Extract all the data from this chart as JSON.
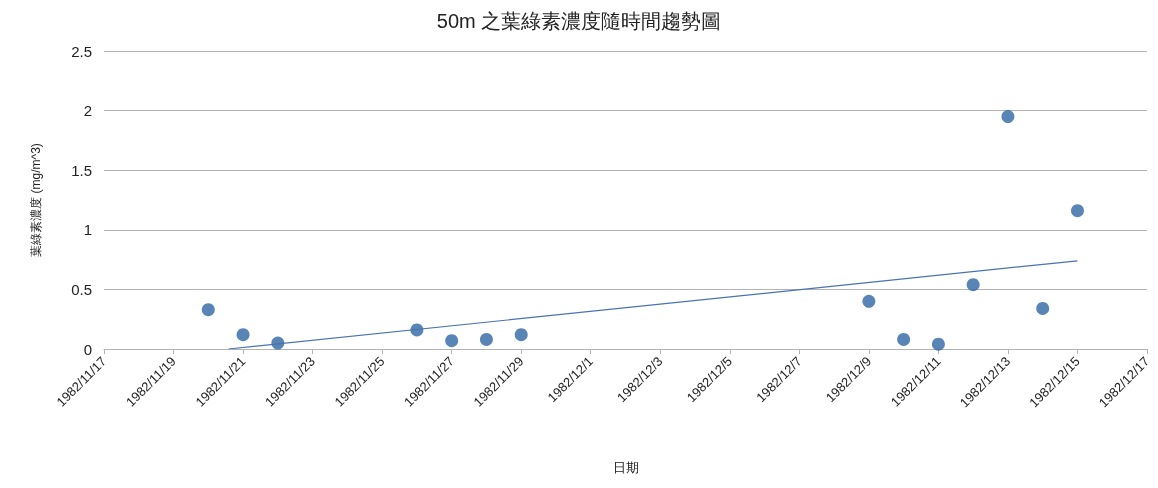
{
  "chart_data": {
    "type": "scatter",
    "title": "50m 之葉綠素濃度隨時間趨勢圖",
    "xlabel": "日期",
    "ylabel": "葉綠素濃度 (mg/m^3)",
    "xlim": [
      "1982-11-17",
      "1982-12-17"
    ],
    "xticks": [
      {
        "value": "1982-11-17",
        "label": "1982/11/17"
      },
      {
        "value": "1982-11-19",
        "label": "1982/11/19"
      },
      {
        "value": "1982-11-21",
        "label": "1982/11/21"
      },
      {
        "value": "1982-11-23",
        "label": "1982/11/23"
      },
      {
        "value": "1982-11-25",
        "label": "1982/11/25"
      },
      {
        "value": "1982-11-27",
        "label": "1982/11/27"
      },
      {
        "value": "1982-11-29",
        "label": "1982/11/29"
      },
      {
        "value": "1982-12-01",
        "label": "1982/12/1"
      },
      {
        "value": "1982-12-03",
        "label": "1982/12/3"
      },
      {
        "value": "1982-12-05",
        "label": "1982/12/5"
      },
      {
        "value": "1982-12-07",
        "label": "1982/12/7"
      },
      {
        "value": "1982-12-09",
        "label": "1982/12/9"
      },
      {
        "value": "1982-12-11",
        "label": "1982/12/11"
      },
      {
        "value": "1982-12-13",
        "label": "1982/12/13"
      },
      {
        "value": "1982-12-15",
        "label": "1982/12/15"
      },
      {
        "value": "1982-12-17",
        "label": "1982/12/17"
      }
    ],
    "ylim": [
      0,
      2.5
    ],
    "yticks": [
      0,
      0.5,
      1,
      1.5,
      2,
      2.5
    ],
    "grid": "y",
    "marker": "circle",
    "series": [
      {
        "color": "#2e67a3",
        "x": [
          "1982-11-20",
          "1982-11-21",
          "1982-11-22",
          "1982-11-26",
          "1982-11-27",
          "1982-11-28",
          "1982-11-29",
          "1982-12-09",
          "1982-12-10",
          "1982-12-11",
          "1982-12-12",
          "1982-12-13",
          "1982-12-14",
          "1982-12-15"
        ],
        "values": [
          0.33,
          0.12,
          0.05,
          0.16,
          0.07,
          0.08,
          0.12,
          0.4,
          0.08,
          0.04,
          0.54,
          1.95,
          0.34,
          1.16
        ]
      },
      {
        "type": "line",
        "color": "#4a72b0",
        "marker": "none",
        "line_style": "solid",
        "x": [
          "1982-11-20T14:00",
          "1982-12-15"
        ],
        "values": [
          0,
          0.74
        ]
      }
    ]
  }
}
